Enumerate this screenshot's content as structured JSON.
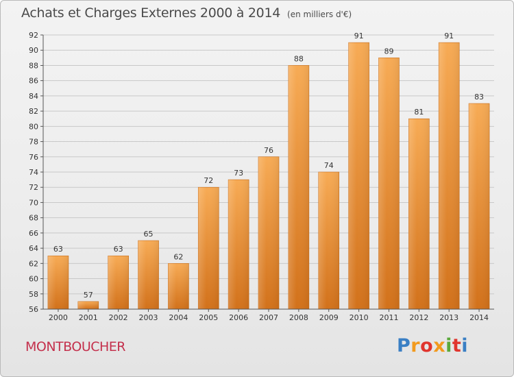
{
  "header": {
    "title": "Achats et Charges Externes 2000 à 2014",
    "unit_note": "(en milliers d'€)"
  },
  "footer": {
    "location": "MONTBOUCHER",
    "brand_logo": "Proxiti"
  },
  "colors": {
    "bar_light": "#f6a850",
    "bar_dark": "#d4741c",
    "location_text": "#c4304c",
    "grid": "#c8c8c8"
  },
  "chart_data": {
    "type": "bar",
    "title": "Achats et Charges Externes 2000 à 2014",
    "subtitle": "(en milliers d'€)",
    "categories": [
      "2000",
      "2001",
      "2002",
      "2003",
      "2004",
      "2005",
      "2006",
      "2007",
      "2008",
      "2009",
      "2010",
      "2011",
      "2012",
      "2013",
      "2014"
    ],
    "values": [
      63,
      57,
      63,
      65,
      62,
      72,
      73,
      76,
      88,
      74,
      91,
      89,
      81,
      91,
      83
    ],
    "ylim": [
      56,
      92
    ],
    "yticks": [
      56,
      58,
      60,
      62,
      64,
      66,
      68,
      70,
      72,
      74,
      76,
      78,
      80,
      82,
      84,
      86,
      88,
      90,
      92
    ],
    "data_labels": true,
    "grid": "horizontal"
  }
}
